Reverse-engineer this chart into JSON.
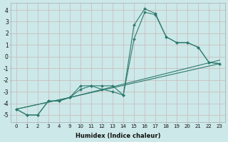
{
  "xlabel": "Humidex (Indice chaleur)",
  "background_color": "#cce8e8",
  "grid_color": "#c8b8b8",
  "line_color": "#2e7b6e",
  "tick_labels": [
    "0",
    "1",
    "2",
    "3",
    "4",
    "9",
    "10",
    "11",
    "12",
    "13",
    "14",
    "15",
    "16",
    "17",
    "18",
    "19",
    "20",
    "21",
    "22",
    "23"
  ],
  "yticks": [
    -5,
    -4,
    -3,
    -2,
    -1,
    0,
    1,
    2,
    3,
    4
  ],
  "ylim": [
    -5.6,
    4.6
  ],
  "lines": [
    {
      "x": [
        0,
        1,
        2,
        3,
        4,
        5,
        6,
        7,
        8,
        9,
        10,
        11,
        12,
        13,
        14,
        15,
        16,
        17,
        18,
        19
      ],
      "y": [
        -4.5,
        -5.0,
        -5.0,
        -3.8,
        -3.8,
        -3.5,
        -2.8,
        -2.5,
        -2.8,
        -3.0,
        -3.3,
        1.5,
        3.8,
        3.6,
        1.7,
        1.2,
        1.2,
        0.8,
        -0.5,
        -0.6
      ],
      "marker": true
    },
    {
      "x": [
        0,
        1,
        2,
        3,
        4,
        5,
        6,
        7,
        8,
        9,
        10,
        11,
        12,
        13,
        14,
        15,
        16,
        17,
        18,
        19
      ],
      "y": [
        -4.5,
        -5.0,
        -5.0,
        -3.8,
        -3.8,
        -3.5,
        -2.5,
        -2.5,
        -2.5,
        -2.5,
        -3.3,
        2.7,
        4.1,
        3.7,
        1.7,
        1.2,
        1.2,
        0.8,
        -0.5,
        -0.6
      ],
      "marker": true
    },
    {
      "x": [
        0,
        5,
        19
      ],
      "y": [
        -4.5,
        -3.5,
        -0.6
      ],
      "marker": false
    },
    {
      "x": [
        0,
        5,
        19
      ],
      "y": [
        -4.5,
        -3.5,
        -0.3
      ],
      "marker": false
    }
  ]
}
